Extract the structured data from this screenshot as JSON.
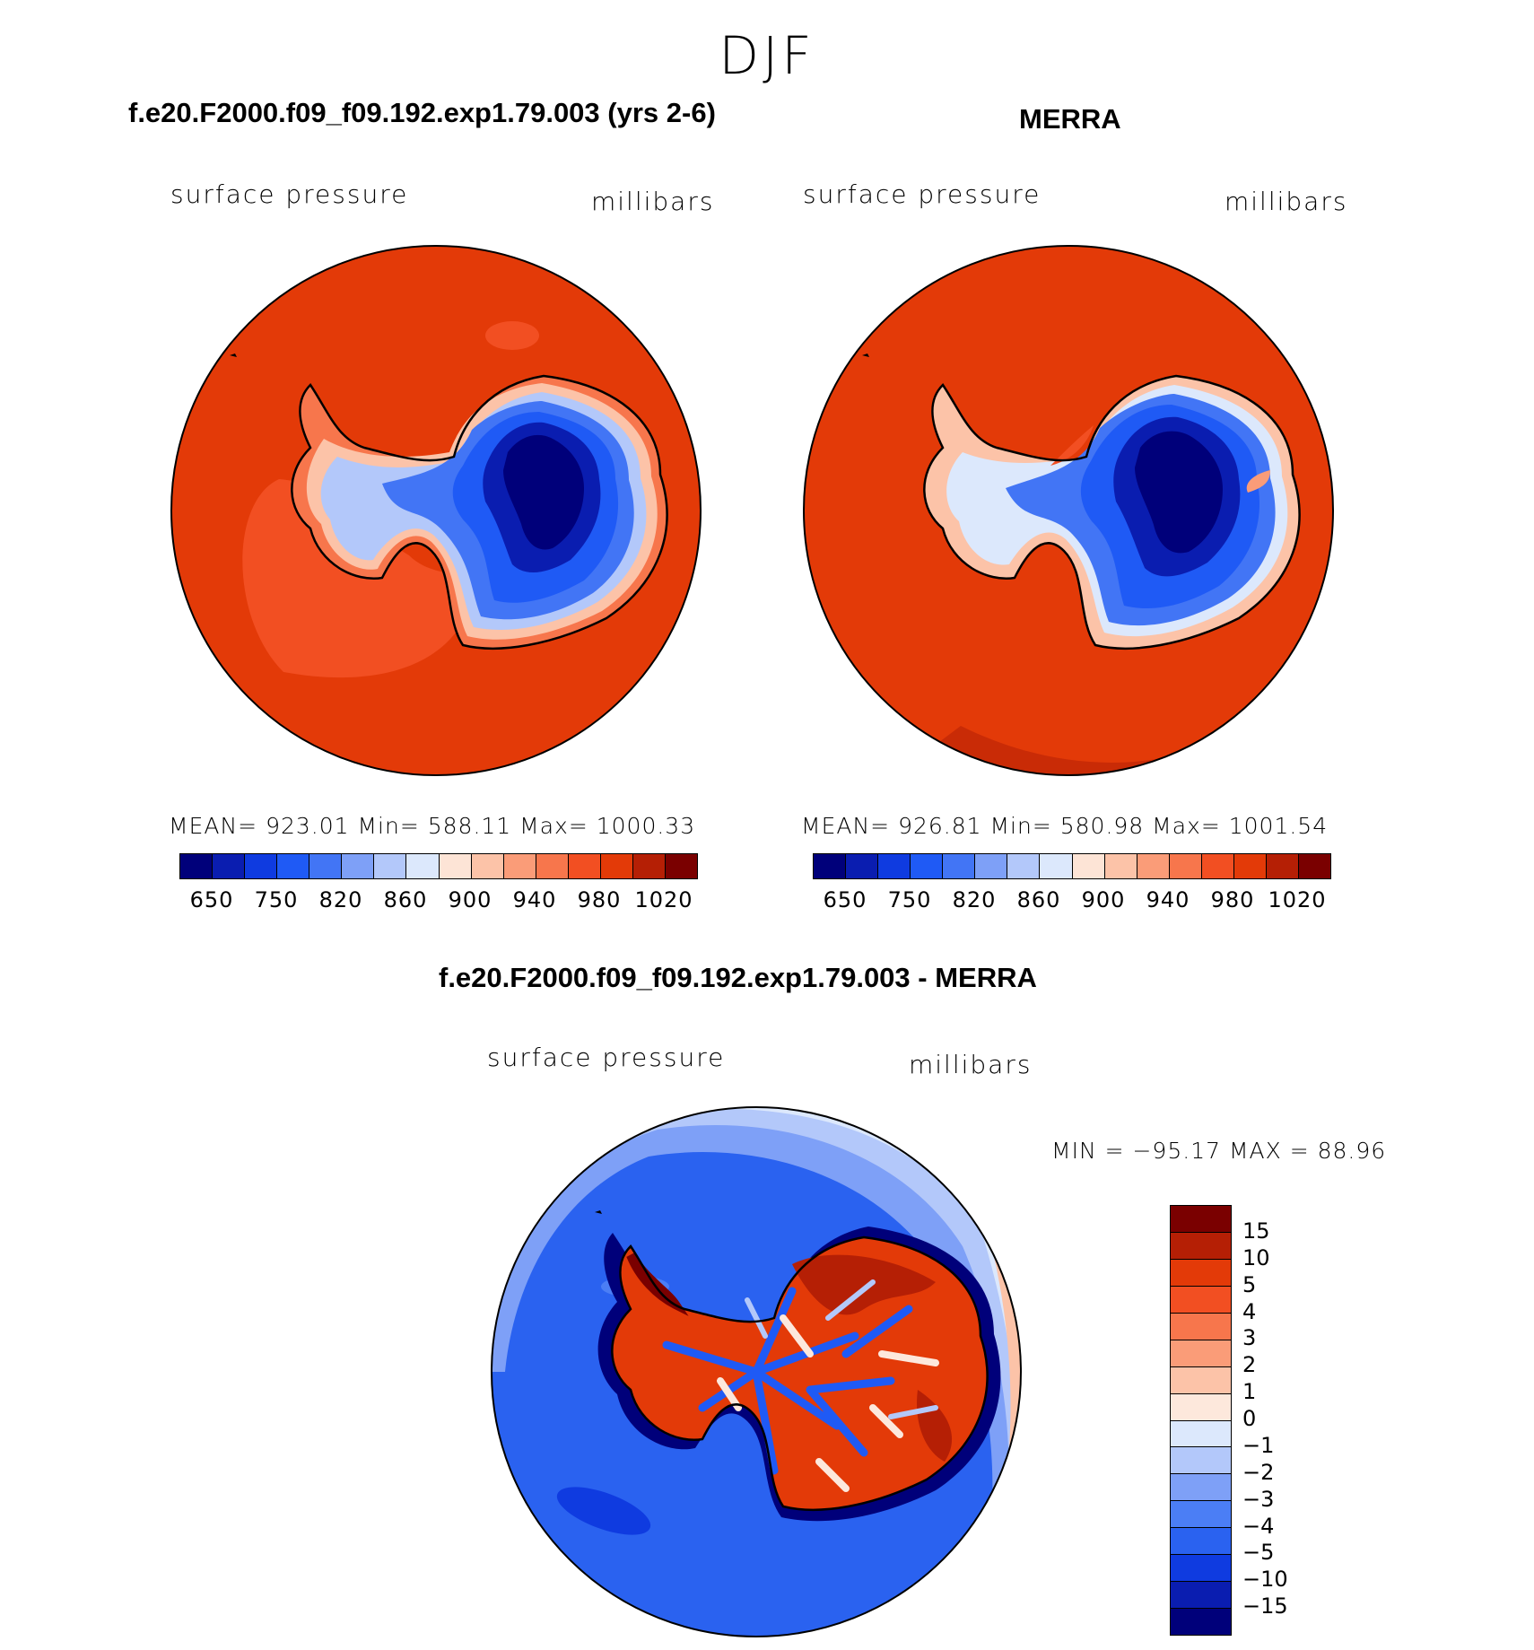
{
  "title": "DJF",
  "panels": [
    {
      "title": "f.e20.F2000.f09_f09.192.exp1.79.003 (yrs 2-6)",
      "variable": "surface pressure",
      "units": "millibars",
      "stats": "MEAN=  923.01    Min=  588.11    Max=  1000.33",
      "colorbar_labels": [
        "650",
        "750",
        "820",
        "860",
        "900",
        "940",
        "980",
        "1020"
      ]
    },
    {
      "title": "MERRA",
      "variable": "surface pressure",
      "units": "millibars",
      "stats": "MEAN=  926.81    Min=  580.98    Max=  1001.54",
      "colorbar_labels": [
        "650",
        "750",
        "820",
        "860",
        "900",
        "940",
        "980",
        "1020"
      ]
    },
    {
      "title": "f.e20.F2000.f09_f09.192.exp1.79.003 - MERRA",
      "variable": "surface pressure",
      "units": "millibars",
      "stats": "MIN =  −95.17  MAX =    88.96",
      "colorbar_labels": [
        "15",
        "10",
        "5",
        "4",
        "3",
        "2",
        "1",
        "0",
        "−1",
        "−2",
        "−3",
        "−4",
        "−5",
        "−10",
        "−15"
      ]
    }
  ],
  "colors": {
    "abs_scale": [
      "#00007a",
      "#0a1db0",
      "#0f3be0",
      "#1f5af5",
      "#4275f5",
      "#7ea0f7",
      "#b3c8fa",
      "#dce8fc",
      "#fde4d6",
      "#fcc3a8",
      "#fa9c78",
      "#f7764c",
      "#f24f22",
      "#e33a08",
      "#b51f05",
      "#7a0000"
    ],
    "diff_scale": [
      "#7a0000",
      "#b51f05",
      "#e33a08",
      "#f24f22",
      "#f7764c",
      "#fa9c78",
      "#fcc3a8",
      "#fde8dc",
      "#dce8fc",
      "#b3c8fa",
      "#7ea0f7",
      "#4b7ef5",
      "#2a62f0",
      "#0f3be0",
      "#0a1db0",
      "#00007a"
    ]
  }
}
